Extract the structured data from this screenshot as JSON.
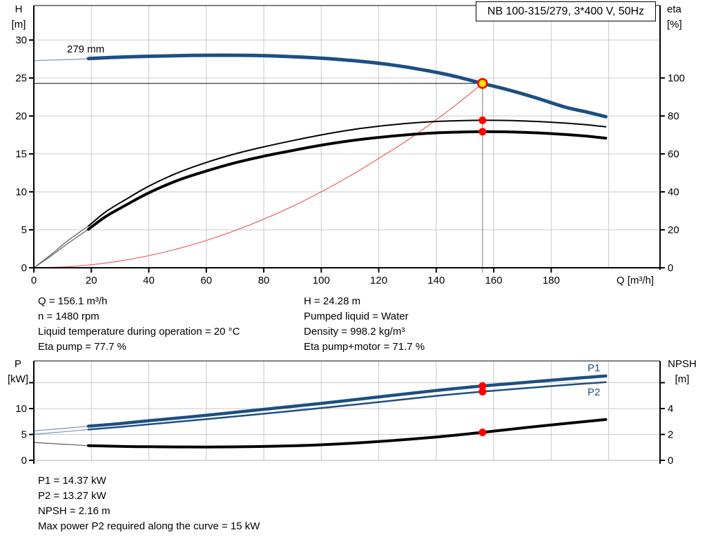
{
  "title_box": "NB 100-315/279, 3*400 V, 50Hz",
  "colors": {
    "accent_blue": "#1c4f82",
    "thin_tail_blue": "#7d93b5",
    "thin_tail_gray": "#5a5a5a",
    "op_red": "#ff0000",
    "op_yellow": "#ffe000",
    "system_red": "#f25c5c",
    "grid": "#c9c9c9",
    "axis": "#000000",
    "bottom_border_gray": "#b3b3b3",
    "op_vline_gray": "#777777"
  },
  "info_top_left": [
    "Q = 156.1 m³/h",
    "n = 1480 rpm",
    "Liquid temperature during operation = 20 °C",
    "Eta pump = 77.7 %"
  ],
  "info_top_right": [
    "H = 24.28 m",
    "Pumped liquid = Water",
    "Density = 998.2 kg/m³",
    "Eta pump+motor = 71.7 %"
  ],
  "info_bottom": [
    "P1 = 14.37 kW",
    "P2 = 13.27 kW",
    "NPSH = 2.16 m",
    "Max power P2 required along the curve = 15 kW"
  ],
  "chart_data": [
    {
      "id": "qh-eta-chart",
      "type": "line",
      "x": {
        "label": "Q [m³/h]",
        "ticks": [
          0,
          20,
          40,
          60,
          80,
          100,
          120,
          140,
          160,
          180
        ],
        "grid": [
          20,
          40,
          60,
          80,
          100,
          120,
          140,
          160,
          180,
          200
        ],
        "range": [
          0,
          218
        ]
      },
      "y_left": {
        "label": "H",
        "unit": "[m]",
        "ticks": [
          0,
          5,
          10,
          15,
          20,
          25,
          30
        ],
        "range": [
          0,
          34.5
        ]
      },
      "y_right": {
        "label": "eta",
        "unit": "[%]",
        "ticks": [
          0,
          20,
          40,
          60,
          80,
          100
        ],
        "range": [
          0,
          138
        ]
      },
      "series": [
        {
          "name": "head-curve-279mm",
          "label": "279 mm",
          "axis": "left",
          "color": "#1c4f82",
          "tail_color": "#7d93b5",
          "width": 5,
          "thin_until": 19,
          "points": [
            [
              0,
              27.3
            ],
            [
              8,
              27.38
            ],
            [
              14,
              27.45
            ],
            [
              19,
              27.55
            ],
            [
              27,
              27.7
            ],
            [
              36,
              27.82
            ],
            [
              45,
              27.9
            ],
            [
              55,
              27.97
            ],
            [
              65,
              28.0
            ],
            [
              75,
              27.98
            ],
            [
              85,
              27.88
            ],
            [
              95,
              27.72
            ],
            [
              105,
              27.48
            ],
            [
              115,
              27.15
            ],
            [
              125,
              26.7
            ],
            [
              135,
              26.1
            ],
            [
              145,
              25.35
            ],
            [
              156.1,
              24.28
            ],
            [
              165,
              23.45
            ],
            [
              175,
              22.35
            ],
            [
              185,
              21.15
            ],
            [
              192,
              20.55
            ],
            [
              199,
              19.9
            ]
          ]
        },
        {
          "name": "eta-pump-curve",
          "axis": "right",
          "color": "#000000",
          "tail_color": "#5a5a5a",
          "width": 2,
          "thin_until": 19,
          "points": [
            [
              0,
              0
            ],
            [
              6,
              7
            ],
            [
              12,
              14.5
            ],
            [
              19,
              22
            ],
            [
              25,
              29.5
            ],
            [
              32,
              36
            ],
            [
              40,
              43
            ],
            [
              50,
              50
            ],
            [
              60,
              55.5
            ],
            [
              70,
              60
            ],
            [
              80,
              63.7
            ],
            [
              90,
              67
            ],
            [
              100,
              70
            ],
            [
              110,
              72.6
            ],
            [
              120,
              74.6
            ],
            [
              130,
              76.1
            ],
            [
              140,
              77.1
            ],
            [
              148,
              77.5
            ],
            [
              156.1,
              77.7
            ],
            [
              165,
              77.6
            ],
            [
              175,
              77.1
            ],
            [
              185,
              76.2
            ],
            [
              192,
              75.4
            ],
            [
              199,
              74.3
            ]
          ]
        },
        {
          "name": "eta-pump-motor-curve",
          "axis": "right",
          "color": "#000000",
          "tail_color": "#5a5a5a",
          "width": 4,
          "thin_until": 19,
          "points": [
            [
              0,
              0
            ],
            [
              6,
              6.3
            ],
            [
              12,
              13
            ],
            [
              19,
              20.3
            ],
            [
              25,
              27
            ],
            [
              32,
              33
            ],
            [
              40,
              39.5
            ],
            [
              50,
              46
            ],
            [
              60,
              51
            ],
            [
              70,
              55.3
            ],
            [
              80,
              58.8
            ],
            [
              90,
              61.8
            ],
            [
              100,
              64.6
            ],
            [
              110,
              66.9
            ],
            [
              120,
              68.7
            ],
            [
              130,
              70.1
            ],
            [
              140,
              71.1
            ],
            [
              148,
              71.5
            ],
            [
              156.1,
              71.7
            ],
            [
              165,
              71.6
            ],
            [
              175,
              71.1
            ],
            [
              185,
              70.2
            ],
            [
              192,
              69.4
            ],
            [
              199,
              68.3
            ]
          ]
        },
        {
          "name": "system-curve",
          "axis": "left",
          "color": "#f25c5c",
          "width": 1.2,
          "points": [
            [
              0,
              0
            ],
            [
              10,
              0.1
            ],
            [
              20,
              0.4
            ],
            [
              30,
              0.9
            ],
            [
              40,
              1.6
            ],
            [
              50,
              2.5
            ],
            [
              60,
              3.6
            ],
            [
              70,
              4.9
            ],
            [
              80,
              6.4
            ],
            [
              90,
              8.1
            ],
            [
              100,
              10.0
            ],
            [
              110,
              12.1
            ],
            [
              120,
              14.4
            ],
            [
              130,
              16.8
            ],
            [
              140,
              19.5
            ],
            [
              148,
              21.8
            ],
            [
              156.1,
              24.28
            ]
          ]
        }
      ],
      "operating_point": {
        "q": 156.1,
        "h": 24.28,
        "eta_pump": 77.7,
        "eta_pump_motor": 71.7
      }
    },
    {
      "id": "power-npsh-chart",
      "type": "line",
      "x": {
        "grid": [
          20,
          40,
          60,
          80,
          100,
          120,
          140,
          160,
          180,
          200
        ],
        "range": [
          0,
          218
        ]
      },
      "y_left": {
        "label": "P",
        "unit": "[kW]",
        "ticks": [
          0,
          5,
          10
        ],
        "unlabeled_ticks": [
          15
        ],
        "grid": [
          5,
          10,
          15
        ],
        "range": [
          0,
          19.2
        ]
      },
      "y_right": {
        "label": "NPSH",
        "unit": "[m]",
        "ticks": [
          0,
          2,
          4
        ],
        "unlabeled_ticks": [
          6
        ],
        "range": [
          0,
          7.68
        ]
      },
      "series": [
        {
          "name": "p1-curve",
          "label": "P1",
          "axis": "left",
          "color": "#1c4f82",
          "tail_color": "#7d93b5",
          "width": 4.5,
          "thin_until": 19,
          "points": [
            [
              0,
              5.7
            ],
            [
              10,
              6.15
            ],
            [
              19,
              6.6
            ],
            [
              30,
              7.1
            ],
            [
              40,
              7.65
            ],
            [
              60,
              8.7
            ],
            [
              80,
              9.85
            ],
            [
              100,
              11.0
            ],
            [
              120,
              12.25
            ],
            [
              140,
              13.5
            ],
            [
              156.1,
              14.37
            ],
            [
              170,
              15.0
            ],
            [
              185,
              15.7
            ],
            [
              199,
              16.3
            ]
          ]
        },
        {
          "name": "p2-curve",
          "label": "P2",
          "axis": "left",
          "color": "#1c4f82",
          "tail_color": "#7d93b5",
          "width": 2.5,
          "thin_until": 19,
          "points": [
            [
              0,
              5.05
            ],
            [
              10,
              5.5
            ],
            [
              19,
              5.95
            ],
            [
              30,
              6.45
            ],
            [
              40,
              6.95
            ],
            [
              60,
              7.95
            ],
            [
              80,
              9.0
            ],
            [
              100,
              10.1
            ],
            [
              120,
              11.25
            ],
            [
              140,
              12.45
            ],
            [
              156.1,
              13.27
            ],
            [
              170,
              13.9
            ],
            [
              185,
              14.55
            ],
            [
              199,
              15.1
            ]
          ]
        },
        {
          "name": "npsh-curve",
          "axis": "right",
          "color": "#000000",
          "tail_color": "#5a5a5a",
          "width": 4,
          "thin_until": 19,
          "points": [
            [
              0,
              1.38
            ],
            [
              10,
              1.25
            ],
            [
              19,
              1.13
            ],
            [
              30,
              1.08
            ],
            [
              40,
              1.05
            ],
            [
              60,
              1.03
            ],
            [
              80,
              1.07
            ],
            [
              100,
              1.2
            ],
            [
              120,
              1.45
            ],
            [
              140,
              1.8
            ],
            [
              156.1,
              2.16
            ],
            [
              170,
              2.5
            ],
            [
              185,
              2.85
            ],
            [
              199,
              3.15
            ]
          ]
        }
      ],
      "operating_point": {
        "q": 156.1,
        "p1": 14.37,
        "p2": 13.27,
        "npsh": 2.16
      }
    }
  ]
}
